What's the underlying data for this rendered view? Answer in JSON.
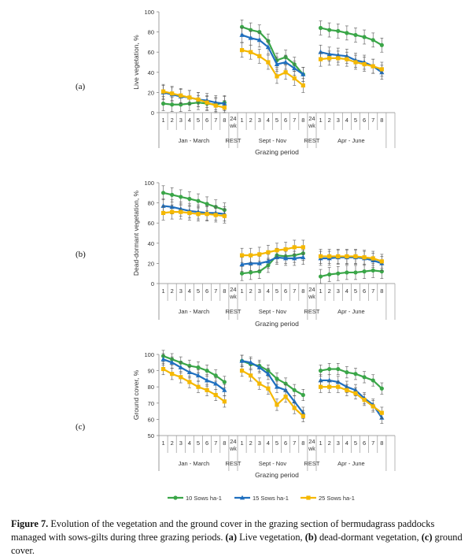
{
  "chart_data": [
    {
      "type": "line",
      "panel_label": "(a)",
      "ylabel": "Live vegetation, %",
      "xlabel": "Grazing period",
      "ylim": [
        0,
        100
      ],
      "yticks": [
        "0",
        "20",
        "40",
        "60",
        "80",
        "100"
      ],
      "groups": [
        {
          "name": "Jan - March",
          "weeks": [
            "1",
            "2",
            "3",
            "4",
            "5",
            "6",
            "7",
            "8"
          ]
        },
        {
          "name": "REST",
          "weeks": [
            "24 wk"
          ]
        },
        {
          "name": "Sept - Nov",
          "weeks": [
            "1",
            "2",
            "3",
            "4",
            "5",
            "6",
            "7",
            "8"
          ]
        },
        {
          "name": "REST",
          "weeks": [
            "24 wk"
          ]
        },
        {
          "name": "Apr - June",
          "weeks": [
            "1",
            "2",
            "3",
            "4",
            "5",
            "6",
            "7",
            "8"
          ]
        }
      ],
      "series": [
        {
          "name": "10 Sows ha-1",
          "color": "#3aa648",
          "marker": "circle",
          "segments": [
            [
              9,
              8,
              8,
              9,
              10,
              9,
              8,
              10
            ],
            [
              85,
              82,
              80,
              71,
              52,
              55,
              48,
              38
            ],
            [
              84,
              82,
              81,
              79,
              77,
              75,
              72,
              67
            ]
          ]
        },
        {
          "name": "15 Sows ha-1",
          "color": "#1f6fbf",
          "marker": "triangle",
          "segments": [
            [
              20,
              18,
              16,
              15,
              13,
              12,
              10,
              9
            ],
            [
              77,
              74,
              72,
              65,
              48,
              50,
              44,
              38
            ],
            [
              60,
              58,
              57,
              56,
              52,
              50,
              46,
              40
            ]
          ]
        },
        {
          "name": "25 Sows ha-1",
          "color": "#f5b800",
          "marker": "square",
          "segments": [
            [
              21,
              19,
              17,
              15,
              13,
              10,
              7,
              5
            ],
            [
              62,
              60,
              56,
              50,
              36,
              40,
              34,
              27
            ],
            [
              53,
              54,
              54,
              53,
              50,
              48,
              46,
              43
            ]
          ]
        }
      ]
    },
    {
      "type": "line",
      "panel_label": "(b)",
      "ylabel": "Dead-dormant vegetation, %",
      "xlabel": "Grazing period",
      "ylim": [
        0,
        100
      ],
      "yticks": [
        "0",
        "20",
        "40",
        "60",
        "80",
        "100"
      ],
      "groups": [
        {
          "name": "Jan - March",
          "weeks": [
            "1",
            "2",
            "3",
            "4",
            "5",
            "6",
            "7",
            "8"
          ]
        },
        {
          "name": "REST",
          "weeks": [
            "24 wk"
          ]
        },
        {
          "name": "Sept - Nov",
          "weeks": [
            "1",
            "2",
            "3",
            "4",
            "5",
            "6",
            "7",
            "8"
          ]
        },
        {
          "name": "REST",
          "weeks": [
            "24 wk"
          ]
        },
        {
          "name": "Apr - June",
          "weeks": [
            "1",
            "2",
            "3",
            "4",
            "5",
            "6",
            "7",
            "8"
          ]
        }
      ],
      "series": [
        {
          "name": "10 Sows ha-1",
          "color": "#3aa648",
          "marker": "circle",
          "segments": [
            [
              90,
              88,
              86,
              84,
              82,
              79,
              76,
              73
            ],
            [
              10,
              11,
              12,
              18,
              28,
              27,
              28,
              30
            ],
            [
              7,
              9,
              10,
              11,
              11,
              12,
              13,
              12
            ]
          ]
        },
        {
          "name": "15 Sows ha-1",
          "color": "#1f6fbf",
          "marker": "triangle",
          "segments": [
            [
              77,
              76,
              74,
              72,
              71,
              70,
              70,
              69
            ],
            [
              19,
              20,
              20,
              22,
              26,
              25,
              25,
              26
            ],
            [
              25,
              25,
              26,
              26,
              26,
              25,
              23,
              20
            ]
          ]
        },
        {
          "name": "25 Sows ha-1",
          "color": "#f5b800",
          "marker": "square",
          "segments": [
            [
              70,
              71,
              71,
              70,
              69,
              69,
              68,
              67
            ],
            [
              28,
              28,
              29,
              31,
              33,
              34,
              36,
              36
            ],
            [
              27,
              27,
              27,
              27,
              27,
              26,
              25,
              22
            ]
          ]
        }
      ]
    },
    {
      "type": "line",
      "panel_label": "(c)",
      "ylabel": "Ground cover, %",
      "xlabel": "Grazing period",
      "ylim": [
        50,
        100
      ],
      "yticks": [
        "50",
        "60",
        "70",
        "80",
        "90",
        "100"
      ],
      "groups": [
        {
          "name": "Jan - March",
          "weeks": [
            "1",
            "2",
            "3",
            "4",
            "5",
            "6",
            "7",
            "8"
          ]
        },
        {
          "name": "REST",
          "weeks": [
            "24 wk"
          ]
        },
        {
          "name": "Sept - Nov",
          "weeks": [
            "1",
            "2",
            "3",
            "4",
            "5",
            "6",
            "7",
            "8"
          ]
        },
        {
          "name": "REST",
          "weeks": [
            "24 wk"
          ]
        },
        {
          "name": "Apr - June",
          "weeks": [
            "1",
            "2",
            "3",
            "4",
            "5",
            "6",
            "7",
            "8"
          ]
        }
      ],
      "series": [
        {
          "name": "10 Sows ha-1",
          "color": "#3aa648",
          "marker": "circle",
          "segments": [
            [
              99,
              97,
              95,
              93,
              92,
              90,
              87,
              83
            ],
            [
              96,
              94,
              93,
              90,
              85,
              82,
              78,
              75
            ],
            [
              90,
              91,
              91,
              89,
              88,
              86,
              84,
              79
            ]
          ]
        },
        {
          "name": "15 Sows ha-1",
          "color": "#1f6fbf",
          "marker": "triangle",
          "segments": [
            [
              97,
              95,
              92,
              89,
              87,
              84,
              82,
              78
            ],
            [
              96,
              95,
              92,
              88,
              80,
              78,
              71,
              64
            ],
            [
              84,
              84,
              83,
              80,
              78,
              73,
              69,
              61
            ]
          ]
        },
        {
          "name": "25 Sows ha-1",
          "color": "#f5b800",
          "marker": "square",
          "segments": [
            [
              91,
              88,
              86,
              83,
              80,
              78,
              75,
              71
            ],
            [
              90,
              87,
              82,
              79,
              69,
              74,
              67,
              62
            ],
            [
              80,
              80,
              80,
              78,
              76,
              72,
              68,
              64
            ]
          ]
        }
      ]
    }
  ],
  "legend": {
    "items": [
      {
        "label": "10 Sows ha-1",
        "color": "#3aa648",
        "marker": "circle"
      },
      {
        "label": "15 Sows ha-1",
        "color": "#1f6fbf",
        "marker": "triangle"
      },
      {
        "label": "25 Sows ha-1",
        "color": "#f5b800",
        "marker": "square"
      }
    ]
  },
  "caption": {
    "label": "Figure 7.",
    "text_1": " Evolution of the vegetation and the ground cover in the grazing section of bermudagrass paddocks managed with sows-gilts during three grazing periods. ",
    "a": "(a)",
    "a_text": " Live vegetation, ",
    "b": "(b)",
    "b_text": " dead-dormant vegetation, ",
    "c": "(c)",
    "c_text": " ground cover."
  }
}
